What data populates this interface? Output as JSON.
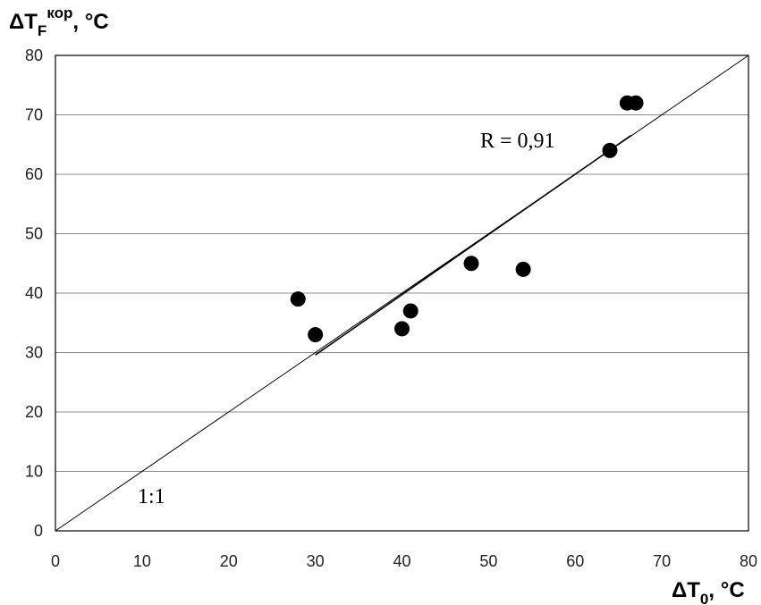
{
  "chart_data": {
    "type": "scatter",
    "xlabel_main": "ΔT",
    "xlabel_sub": "0",
    "xlabel_unit": ", °C",
    "ylabel_main": "ΔT",
    "ylabel_sub": "F",
    "ylabel_sup": "кор",
    "ylabel_unit": ", °C",
    "xlim": [
      0,
      80
    ],
    "ylim": [
      0,
      80
    ],
    "x_ticks": [
      "0",
      "10",
      "20",
      "30",
      "40",
      "50",
      "60",
      "70",
      "80"
    ],
    "y_ticks": [
      "0",
      "10",
      "20",
      "30",
      "40",
      "50",
      "60",
      "70",
      "80"
    ],
    "grid": "horizontal",
    "points": [
      {
        "x": 28,
        "y": 39
      },
      {
        "x": 30,
        "y": 33
      },
      {
        "x": 40,
        "y": 34
      },
      {
        "x": 41,
        "y": 37
      },
      {
        "x": 48,
        "y": 45
      },
      {
        "x": 54,
        "y": 44
      },
      {
        "x": 64,
        "y": 64
      },
      {
        "x": 66,
        "y": 72
      },
      {
        "x": 67,
        "y": 72
      }
    ],
    "reference_line": {
      "label": "1:1",
      "from": [
        0,
        0
      ],
      "to": [
        80,
        80
      ]
    },
    "regression_line": {
      "from": [
        30,
        29.6
      ],
      "to": [
        66.5,
        66.6
      ]
    },
    "annotations": {
      "r_label": "R = 0,91",
      "identity_label": "1:1"
    },
    "colors": {
      "points": "#000000",
      "lines": "#000000",
      "grid": "#8c8c8c",
      "frame": "#000000"
    }
  }
}
